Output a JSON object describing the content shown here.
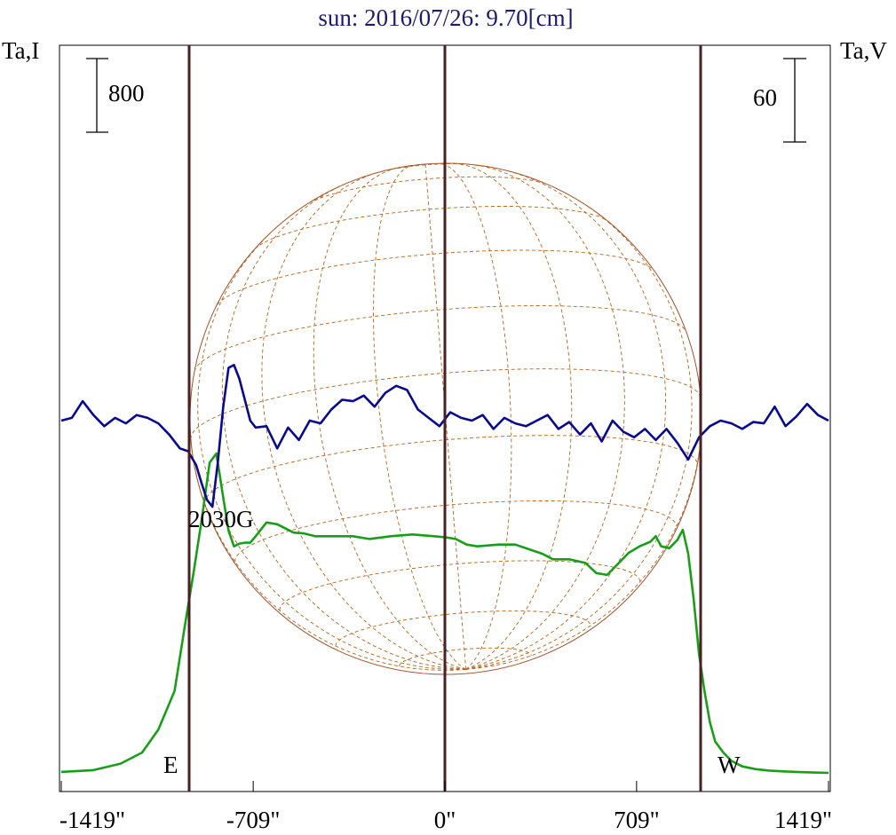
{
  "chart_data": {
    "type": "line",
    "title": "sun: 2016/07/26: 9.70[cm]",
    "y_left_label": "Ta,I",
    "y_right_label": "Ta,V",
    "scale_bar_left": "800",
    "scale_bar_right": "60",
    "x_ticks": [
      "-1419\"",
      "-709\"",
      "0\"",
      "709\"",
      "1419\""
    ],
    "x_tick_values": [
      -1419,
      -709,
      0,
      709,
      1419
    ],
    "xlim": [
      -1419,
      1419
    ],
    "limb_markers": {
      "east": -946,
      "center": 0,
      "west": 946
    },
    "limb_labels": {
      "east": "E",
      "west": "W"
    },
    "annotation": "2030G",
    "grid": false,
    "series": [
      {
        "color": "#1a9e1a",
        "x": [
          -1419,
          -1300,
          -1200,
          -1120,
          -1060,
          -1000,
          -960,
          -930,
          -900,
          -870,
          -845,
          -820,
          -800,
          -780,
          -760,
          -740,
          -720,
          -700,
          -660,
          -620,
          -560,
          -520,
          -480,
          -440,
          -400,
          -340,
          -280,
          -200,
          -120,
          -40,
          0,
          40,
          80,
          120,
          160,
          200,
          260,
          320,
          360,
          400,
          460,
          520,
          560,
          600,
          640,
          680,
          720,
          760,
          780,
          800,
          830,
          860,
          880,
          900,
          920,
          940,
          960,
          980,
          1000,
          1030,
          1060,
          1100,
          1150,
          1200,
          1260,
          1300,
          1350,
          1419
        ],
        "values": [
          20,
          40,
          110,
          230,
          480,
          900,
          1640,
          2180,
          2750,
          3380,
          3480,
          3000,
          2640,
          2470,
          2500,
          2510,
          2510,
          2580,
          2730,
          2710,
          2620,
          2610,
          2580,
          2580,
          2580,
          2580,
          2550,
          2580,
          2600,
          2580,
          2570,
          2550,
          2490,
          2470,
          2480,
          2490,
          2490,
          2430,
          2390,
          2330,
          2330,
          2290,
          2180,
          2160,
          2280,
          2400,
          2470,
          2520,
          2580,
          2470,
          2450,
          2540,
          2650,
          2390,
          1900,
          1300,
          900,
          560,
          350,
          230,
          140,
          80,
          50,
          35,
          25,
          20,
          15,
          10
        ]
      },
      {
        "color": "#0a0a8c",
        "x": [
          -1419,
          -1380,
          -1340,
          -1300,
          -1260,
          -1220,
          -1180,
          -1140,
          -1100,
          -1060,
          -1020,
          -980,
          -950,
          -920,
          -900,
          -880,
          -860,
          -840,
          -820,
          -800,
          -780,
          -760,
          -740,
          -720,
          -700,
          -660,
          -620,
          -580,
          -540,
          -500,
          -460,
          -420,
          -380,
          -340,
          -300,
          -260,
          -220,
          -180,
          -140,
          -100,
          -60,
          -20,
          20,
          60,
          100,
          140,
          180,
          220,
          260,
          300,
          340,
          380,
          420,
          460,
          500,
          540,
          580,
          620,
          660,
          700,
          740,
          780,
          820,
          860,
          900,
          940,
          980,
          1020,
          1060,
          1100,
          1140,
          1180,
          1220,
          1260,
          1300,
          1340,
          1380,
          1419
        ],
        "values": [
          0,
          2,
          14,
          4,
          -4,
          2,
          -2,
          4,
          2,
          -2,
          -10,
          -20,
          -22,
          -32,
          -45,
          -57,
          -62,
          -30,
          10,
          38,
          40,
          30,
          15,
          0,
          -5,
          -4,
          -20,
          -5,
          -14,
          0,
          -2,
          8,
          15,
          14,
          18,
          10,
          20,
          25,
          22,
          8,
          2,
          -4,
          6,
          2,
          0,
          4,
          -6,
          2,
          -2,
          -4,
          0,
          4,
          -6,
          -1,
          -10,
          -2,
          -15,
          0,
          -8,
          -12,
          -6,
          -14,
          -6,
          -16,
          -28,
          -12,
          -4,
          0,
          -2,
          -6,
          -1,
          -2,
          10,
          -4,
          3,
          12,
          4,
          0
        ]
      }
    ]
  }
}
